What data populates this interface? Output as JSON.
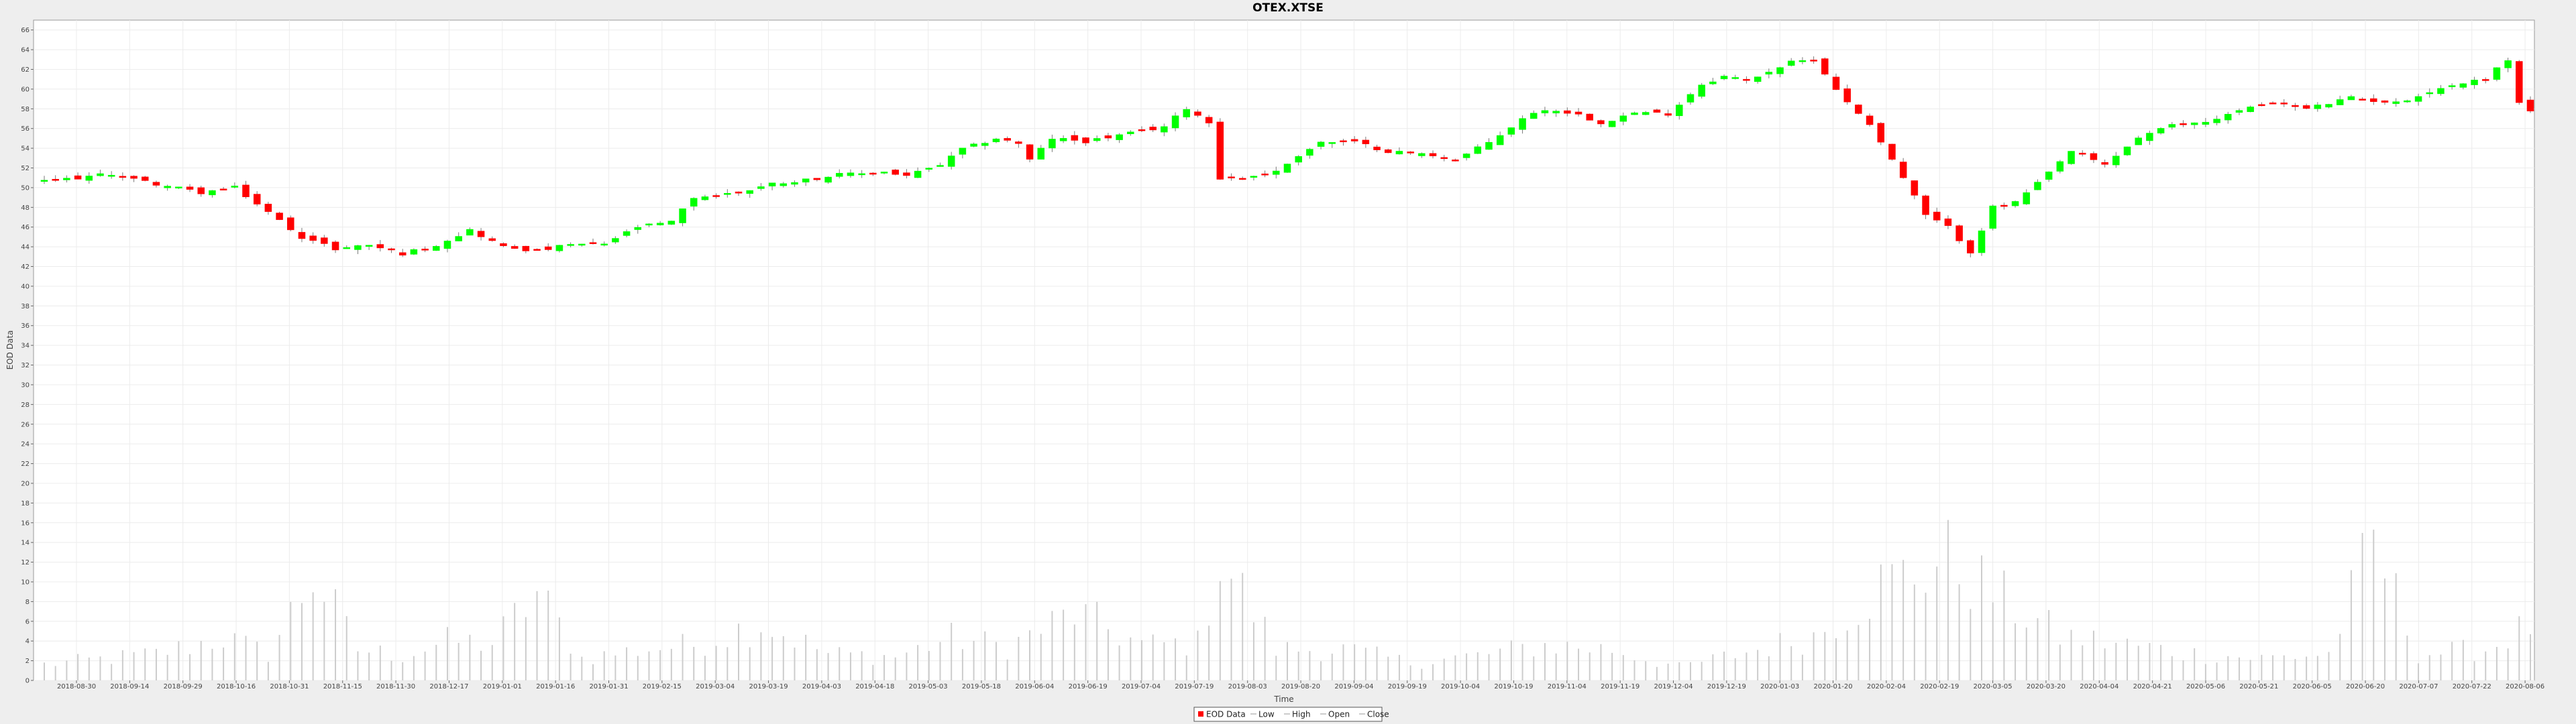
{
  "chart_data": {
    "type": "candlestick",
    "title": "OTEX.XTSE",
    "xlabel": "Time",
    "ylabel": "EOD Data",
    "ylim": [
      0,
      67
    ],
    "yticks": [
      0,
      2,
      4,
      6,
      8,
      10,
      12,
      14,
      16,
      18,
      20,
      22,
      24,
      26,
      28,
      30,
      32,
      34,
      36,
      38,
      40,
      42,
      44,
      46,
      48,
      50,
      52,
      54,
      56,
      58,
      60,
      62,
      64,
      66
    ],
    "x_tick_labels": [
      "2018-08-30",
      "2018-09-14",
      "2018-09-29",
      "2018-10-16",
      "2018-10-31",
      "2018-11-15",
      "2018-11-30",
      "2018-12-17",
      "2019-01-01",
      "2019-01-16",
      "2019-01-31",
      "2019-02-15",
      "2019-03-04",
      "2019-03-19",
      "2019-04-03",
      "2019-04-18",
      "2019-05-03",
      "2019-05-18",
      "2019-06-04",
      "2019-06-19",
      "2019-07-04",
      "2019-07-19",
      "2019-08-03",
      "2019-08-20",
      "2019-09-04",
      "2019-09-19",
      "2019-10-04",
      "2019-10-19",
      "2019-11-04",
      "2019-11-19",
      "2019-12-04",
      "2019-12-19",
      "2020-01-03",
      "2020-01-20",
      "2020-02-04",
      "2020-02-19",
      "2020-03-05",
      "2020-03-20",
      "2020-04-04",
      "2020-04-21",
      "2020-05-06",
      "2020-05-21",
      "2020-06-05",
      "2020-06-20",
      "2020-07-07",
      "2020-07-22",
      "2020-08-06"
    ],
    "grid": true,
    "legend_position": "bottom",
    "legend": [
      "EOD Data",
      "Low",
      "High",
      "Open",
      "Close"
    ],
    "close_path": [
      [
        0,
        50.6
      ],
      [
        6,
        51.4
      ],
      [
        9,
        50.6
      ],
      [
        14,
        49.5
      ],
      [
        17,
        50.0
      ],
      [
        20,
        47.5
      ],
      [
        23,
        45.0
      ],
      [
        26,
        43.8
      ],
      [
        29,
        44.2
      ],
      [
        32,
        43.3
      ],
      [
        35,
        44.2
      ],
      [
        38,
        45.7
      ],
      [
        41,
        44.0
      ],
      [
        44,
        43.6
      ],
      [
        47,
        44.2
      ],
      [
        50,
        44.3
      ],
      [
        53,
        46.0
      ],
      [
        56,
        46.5
      ],
      [
        58,
        49.0
      ],
      [
        62,
        49.5
      ],
      [
        65,
        50.4
      ],
      [
        68,
        50.8
      ],
      [
        71,
        51.3
      ],
      [
        75,
        51.6
      ],
      [
        77,
        51.2
      ],
      [
        80,
        52.3
      ],
      [
        82,
        53.9
      ],
      [
        85,
        55.0
      ],
      [
        87,
        54.5
      ],
      [
        88,
        52.8
      ],
      [
        90,
        55.0
      ],
      [
        93,
        54.7
      ],
      [
        97,
        55.5
      ],
      [
        100,
        56.2
      ],
      [
        102,
        58.1
      ],
      [
        104,
        56.6
      ],
      [
        105,
        51.0
      ],
      [
        107,
        51.0
      ],
      [
        110,
        51.6
      ],
      [
        112,
        53.3
      ],
      [
        114,
        54.6
      ],
      [
        117,
        54.6
      ],
      [
        120,
        53.7
      ],
      [
        124,
        53.3
      ],
      [
        126,
        52.8
      ],
      [
        129,
        54.6
      ],
      [
        133,
        57.7
      ],
      [
        135,
        57.9
      ],
      [
        137,
        57.4
      ],
      [
        139,
        56.6
      ],
      [
        142,
        57.6
      ],
      [
        145,
        57.5
      ],
      [
        148,
        60.5
      ],
      [
        150,
        61.3
      ],
      [
        152,
        60.9
      ],
      [
        156,
        62.7
      ],
      [
        158,
        63.0
      ],
      [
        161,
        58.6
      ],
      [
        163,
        56.5
      ],
      [
        166,
        51.0
      ],
      [
        168,
        47.2
      ],
      [
        170,
        46.0
      ],
      [
        172,
        43.5
      ],
      [
        174,
        48.0
      ],
      [
        176,
        48.5
      ],
      [
        178,
        50.4
      ],
      [
        181,
        53.7
      ],
      [
        184,
        52.3
      ],
      [
        187,
        55.1
      ],
      [
        190,
        56.3
      ],
      [
        193,
        56.7
      ],
      [
        196,
        57.8
      ],
      [
        199,
        58.7
      ],
      [
        202,
        58.0
      ],
      [
        206,
        59.1
      ],
      [
        210,
        58.6
      ],
      [
        214,
        60.1
      ],
      [
        218,
        61.1
      ],
      [
        220,
        63.0
      ],
      [
        221,
        58.6
      ],
      [
        222,
        57.8
      ]
    ],
    "volume_path": [
      [
        0,
        1.8
      ],
      [
        6,
        2.5
      ],
      [
        10,
        3.0
      ],
      [
        16,
        4.8
      ],
      [
        20,
        3.0
      ],
      [
        24,
        12.0
      ],
      [
        28,
        3.5
      ],
      [
        32,
        2.8
      ],
      [
        36,
        4.4
      ],
      [
        40,
        4.2
      ],
      [
        44,
        9.8
      ],
      [
        48,
        2.5
      ],
      [
        54,
        3.6
      ],
      [
        58,
        4.0
      ],
      [
        64,
        6.5
      ],
      [
        70,
        3.0
      ],
      [
        76,
        2.7
      ],
      [
        81,
        4.8
      ],
      [
        86,
        3.8
      ],
      [
        92,
        7.6
      ],
      [
        98,
        4.0
      ],
      [
        103,
        4.2
      ],
      [
        105,
        14.0
      ],
      [
        110,
        3.5
      ],
      [
        116,
        3.5
      ],
      [
        122,
        2.0
      ],
      [
        128,
        2.8
      ],
      [
        134,
        4.0
      ],
      [
        140,
        3.5
      ],
      [
        146,
        1.5
      ],
      [
        152,
        3.2
      ],
      [
        158,
        5.0
      ],
      [
        164,
        10.8
      ],
      [
        170,
        13.6
      ],
      [
        175,
        9.0
      ],
      [
        180,
        5.0
      ],
      [
        186,
        4.0
      ],
      [
        192,
        3.0
      ],
      [
        198,
        2.5
      ],
      [
        204,
        3.0
      ],
      [
        208,
        15.6
      ],
      [
        212,
        3.0
      ],
      [
        218,
        3.5
      ],
      [
        222,
        6.2
      ]
    ],
    "bullish_color": "#00ff00",
    "bearish_color": "#ff0000",
    "volume_color": "#cccccc"
  }
}
